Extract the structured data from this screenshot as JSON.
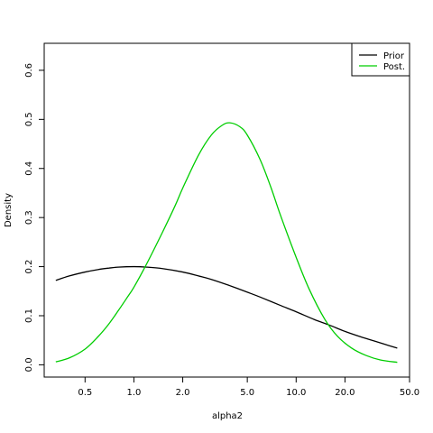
{
  "chart_data": {
    "type": "line",
    "title": "",
    "xlabel": "alpha2",
    "ylabel": "Density",
    "x_scale": "log",
    "xlim": [
      0.28,
      50.0
    ],
    "ylim": [
      -0.025,
      0.655
    ],
    "x_ticks": [
      {
        "value": 0.5,
        "label": "0.5"
      },
      {
        "value": 1.0,
        "label": "1.0"
      },
      {
        "value": 2.0,
        "label": "2.0"
      },
      {
        "value": 5.0,
        "label": "5.0"
      },
      {
        "value": 10.0,
        "label": "10.0"
      },
      {
        "value": 20.0,
        "label": "20.0"
      },
      {
        "value": 50.0,
        "label": "50.0"
      }
    ],
    "y_ticks": [
      {
        "value": 0.0,
        "label": "0.0"
      },
      {
        "value": 0.1,
        "label": "0.1"
      },
      {
        "value": 0.2,
        "label": "0.2"
      },
      {
        "value": 0.3,
        "label": "0.3"
      },
      {
        "value": 0.4,
        "label": "0.4"
      },
      {
        "value": 0.5,
        "label": "0.5"
      },
      {
        "value": 0.6,
        "label": "0.6"
      }
    ],
    "grid": false,
    "legend_position": "top-right",
    "series": [
      {
        "name": "Prior",
        "color": "#000000",
        "x": [
          0.33,
          0.4,
          0.5,
          0.6,
          0.7,
          0.8,
          1.0,
          1.2,
          1.5,
          2.0,
          2.5,
          3.0,
          4.0,
          5.0,
          6.0,
          8.0,
          10.0,
          13.0,
          16.0,
          20.0,
          25.0,
          30.0,
          35.0,
          42.0
        ],
        "y": [
          0.172,
          0.181,
          0.189,
          0.194,
          0.197,
          0.199,
          0.2,
          0.199,
          0.196,
          0.189,
          0.181,
          0.174,
          0.16,
          0.148,
          0.138,
          0.121,
          0.108,
          0.092,
          0.081,
          0.068,
          0.057,
          0.049,
          0.042,
          0.034
        ]
      },
      {
        "name": "Post.",
        "color": "#00cd00",
        "x": [
          0.33,
          0.4,
          0.5,
          0.6,
          0.7,
          0.8,
          0.9,
          1.0,
          1.2,
          1.5,
          1.8,
          2.0,
          2.5,
          3.0,
          3.5,
          3.9,
          4.5,
          5.0,
          6.0,
          7.0,
          8.0,
          10.0,
          12.0,
          15.0,
          18.0,
          22.0,
          27.0,
          33.0,
          42.0
        ],
        "y": [
          0.006,
          0.014,
          0.032,
          0.057,
          0.083,
          0.11,
          0.135,
          0.158,
          0.206,
          0.27,
          0.325,
          0.36,
          0.427,
          0.468,
          0.488,
          0.493,
          0.485,
          0.468,
          0.418,
          0.361,
          0.305,
          0.219,
          0.155,
          0.093,
          0.058,
          0.034,
          0.019,
          0.01,
          0.005
        ]
      }
    ]
  }
}
